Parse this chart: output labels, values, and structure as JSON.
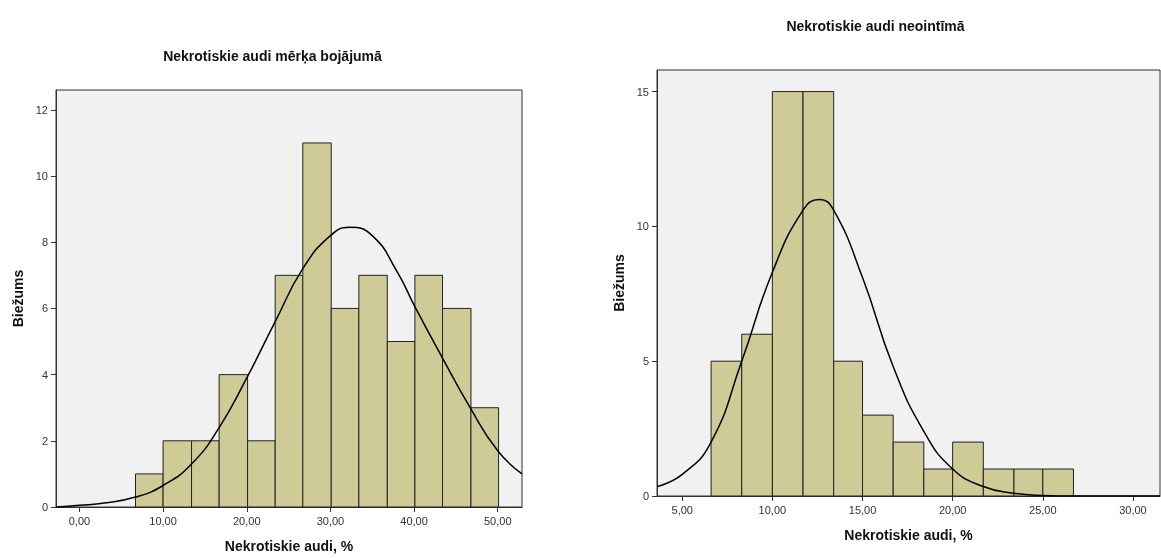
{
  "chart_data": [
    {
      "type": "histogram",
      "title": "Nekrotiskie audi mērķa bojājumā",
      "xlabel": "Nekrotiskie audi, %",
      "ylabel": "Biežums",
      "color": "#cfcb96",
      "bins": [
        6.7,
        10.0,
        13.4,
        16.7,
        20.1,
        23.4,
        26.7,
        30.1,
        33.4,
        36.8,
        40.1,
        43.4,
        46.8,
        50.1
      ],
      "values": [
        1,
        2,
        2,
        4,
        2,
        7,
        11,
        6,
        7,
        5,
        7,
        6,
        3
      ],
      "series": [
        {
          "type": "line",
          "color": "#000000",
          "x": [
            -2.8,
            0,
            3,
            6.7,
            10,
            13.4,
            16.7,
            20,
            23.4,
            26.7,
            30,
            32.3,
            35,
            38,
            40,
            43.4,
            46.7,
            50,
            52.9
          ],
          "values": [
            0,
            0.05,
            0.12,
            0.3,
            0.65,
            1.3,
            2.4,
            3.9,
            5.6,
            7.2,
            8.2,
            8.45,
            8.2,
            7.1,
            6.1,
            4.5,
            3.0,
            1.7,
            1.0
          ]
        }
      ],
      "xlim": [
        -2.8,
        52.9
      ],
      "ylim": [
        0,
        12.6
      ],
      "xticks": [
        {
          "value": 0,
          "label": "0,00"
        },
        {
          "value": 10,
          "label": "10,00"
        },
        {
          "value": 20,
          "label": "20,00"
        },
        {
          "value": 30,
          "label": "30,00"
        },
        {
          "value": 40,
          "label": "40,00"
        },
        {
          "value": 50,
          "label": "50,00"
        }
      ],
      "yticks": [
        0,
        2,
        4,
        6,
        8,
        10,
        12
      ],
      "grid": false,
      "marker": "none",
      "line_style": "solid"
    },
    {
      "type": "histogram",
      "title": "Nekrotiskie audi neointīmā",
      "xlabel": "Nekrotiskie audi, %",
      "ylabel": "Biežums",
      "color": "#cfcb96",
      "bins": [
        6.6,
        8.3,
        10.0,
        11.7,
        13.4,
        15.0,
        16.7,
        18.4,
        20.0,
        21.7,
        23.4,
        25.0,
        26.7
      ],
      "values": [
        5,
        6,
        15,
        15,
        5,
        3,
        2,
        1,
        2,
        1,
        1,
        1
      ],
      "series": [
        {
          "type": "line",
          "color": "#000000",
          "x": [
            3.6,
            5,
            6.6,
            8.3,
            10,
            11.7,
            12.6,
            13.4,
            15,
            16.7,
            18.4,
            20,
            21.7,
            23.4,
            25,
            26.7,
            31.5
          ],
          "values": [
            0.35,
            0.8,
            2.0,
            5.0,
            8.3,
            10.6,
            11.0,
            10.6,
            8.1,
            4.8,
            2.4,
            1.0,
            0.35,
            0.1,
            0.02,
            0,
            0
          ]
        }
      ],
      "xlim": [
        3.6,
        31.5
      ],
      "ylim": [
        0,
        15.8
      ],
      "xticks": [
        {
          "value": 5,
          "label": "5,00"
        },
        {
          "value": 10,
          "label": "10,00"
        },
        {
          "value": 15,
          "label": "15,00"
        },
        {
          "value": 20,
          "label": "20,00"
        },
        {
          "value": 25,
          "label": "25,00"
        },
        {
          "value": 30,
          "label": "30,00"
        }
      ],
      "yticks": [
        0,
        5,
        10,
        15
      ],
      "grid": false,
      "marker": "none",
      "line_style": "solid"
    }
  ]
}
